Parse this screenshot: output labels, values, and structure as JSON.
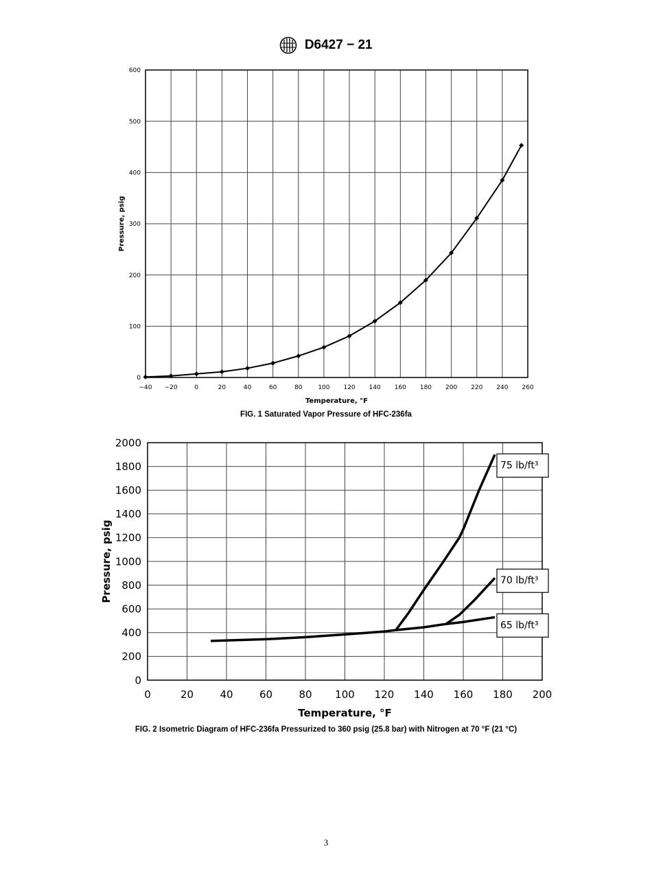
{
  "header": {
    "designation": "D6427 − 21",
    "logo_text": "ASTM"
  },
  "page_number": "3",
  "chart_data": [
    {
      "type": "line",
      "caption": "FIG. 1 Saturated Vapor Pressure of HFC-236fa",
      "xlabel": "Temperature, °F",
      "ylabel": "Pressure, psig",
      "xlim": [
        -40,
        260
      ],
      "ylim": [
        0,
        600
      ],
      "xticks": [
        "−40",
        "−20",
        "0",
        "20",
        "40",
        "60",
        "80",
        "100",
        "120",
        "140",
        "160",
        "180",
        "200",
        "220",
        "240",
        "260"
      ],
      "yticks": [
        "0",
        "100",
        "200",
        "300",
        "400",
        "500",
        "600"
      ],
      "grid": true,
      "markers": "diamond",
      "series": [
        {
          "x": [
            -40,
            -20,
            0,
            20,
            40,
            60,
            80,
            100,
            120,
            140,
            160,
            180,
            200,
            220,
            240,
            255
          ],
          "y": [
            1,
            3,
            7,
            11,
            18,
            28,
            42,
            59,
            81,
            110,
            146,
            190,
            243,
            311,
            385,
            453
          ]
        }
      ]
    },
    {
      "type": "line",
      "caption": "FIG. 2 Isometric Diagram of HFC-236fa Pressurized to 360 psig (25.8 bar) with Nitrogen at 70 °F (21 °C)",
      "xlabel": "Temperature, °F",
      "ylabel": "Pressure, psig",
      "xlim": [
        0,
        200
      ],
      "ylim": [
        0,
        2000
      ],
      "xticks": [
        "0",
        "20",
        "40",
        "60",
        "80",
        "100",
        "120",
        "140",
        "160",
        "180",
        "200"
      ],
      "yticks": [
        "0",
        "200",
        "400",
        "600",
        "800",
        "1000",
        "1200",
        "1400",
        "1600",
        "1800",
        "2000"
      ],
      "grid": true,
      "series": [
        {
          "name": "75 lb/ft³",
          "x": [
            126,
            132,
            140,
            150,
            158,
            160,
            168,
            176
          ],
          "y": [
            425,
            560,
            760,
            1000,
            1200,
            1270,
            1600,
            1900
          ]
        },
        {
          "name": "70 lb/ft³",
          "x": [
            151,
            158,
            166,
            176
          ],
          "y": [
            470,
            550,
            680,
            860
          ]
        },
        {
          "name": "65 lb/ft³",
          "x": [
            32,
            60,
            80,
            100,
            120,
            126,
            140,
            150,
            160,
            176
          ],
          "y": [
            330,
            345,
            362,
            385,
            410,
            422,
            445,
            470,
            490,
            530
          ]
        }
      ]
    }
  ]
}
